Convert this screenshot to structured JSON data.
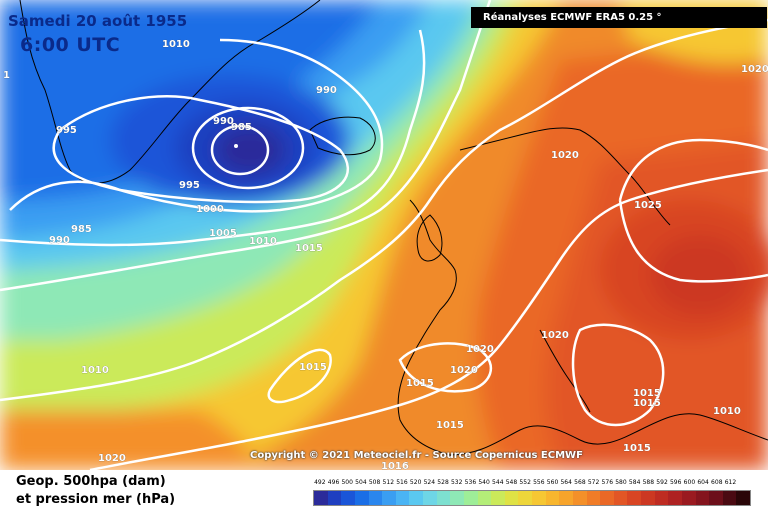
{
  "map": {
    "title_date": "Samedi 20 août 1955",
    "title_time": "6:00 UTC",
    "source": "Réanalyses ECMWF ERA5 0.25 °",
    "copyright": "Copyright © 2021 Meteociel.fr - Source Copernicus ECMWF",
    "isobar_labels": [
      "1010",
      "990",
      "995",
      "990",
      "985",
      "995",
      "1000",
      "990",
      "985",
      "1005",
      "1010",
      "1015",
      "1020",
      "1020",
      "1025",
      "1020",
      "1020",
      "1015",
      "1020",
      "1015",
      "1010",
      "1015",
      "1015",
      "1015",
      "1010",
      "1020",
      "1016",
      "1015",
      "1"
    ],
    "features": [
      "low-pressure-center-iceland",
      "high-pressure-europe",
      "coastline-greenland",
      "coastline-europe"
    ]
  },
  "legend": {
    "line1": "Geop. 500hpa (dam)",
    "line2": "et pression mer (hPa)",
    "scale": [
      {
        "v": "492",
        "c": "#2b2b9a"
      },
      {
        "v": "496",
        "c": "#1f3fc0"
      },
      {
        "v": "500",
        "c": "#1a55d8"
      },
      {
        "v": "504",
        "c": "#1a6ee6"
      },
      {
        "v": "508",
        "c": "#2a86ee"
      },
      {
        "v": "512",
        "c": "#3a9ef2"
      },
      {
        "v": "516",
        "c": "#4ab4f4"
      },
      {
        "v": "520",
        "c": "#5ac8f0"
      },
      {
        "v": "524",
        "c": "#6ed6e6"
      },
      {
        "v": "528",
        "c": "#7de0d0"
      },
      {
        "v": "532",
        "c": "#8ee8b6"
      },
      {
        "v": "536",
        "c": "#9eee98"
      },
      {
        "v": "540",
        "c": "#b4ee78"
      },
      {
        "v": "544",
        "c": "#cbea5a"
      },
      {
        "v": "548",
        "c": "#dfe245"
      },
      {
        "v": "552",
        "c": "#eed63a"
      },
      {
        "v": "556",
        "c": "#f6c733"
      },
      {
        "v": "560",
        "c": "#f8b62e"
      },
      {
        "v": "564",
        "c": "#f7a42b"
      },
      {
        "v": "568",
        "c": "#f49029"
      },
      {
        "v": "572",
        "c": "#f07c27"
      },
      {
        "v": "576",
        "c": "#ea6826"
      },
      {
        "v": "580",
        "c": "#e25625"
      },
      {
        "v": "584",
        "c": "#d84523"
      },
      {
        "v": "588",
        "c": "#cc3822"
      },
      {
        "v": "592",
        "c": "#be2c22"
      },
      {
        "v": "596",
        "c": "#ae2222"
      },
      {
        "v": "600",
        "c": "#9a1a20"
      },
      {
        "v": "604",
        "c": "#84141d"
      },
      {
        "v": "608",
        "c": "#6c0f1a"
      },
      {
        "v": "612",
        "c": "#4a0a12"
      },
      {
        "v": "",
        "c": "#2a0608"
      }
    ]
  },
  "colors": {
    "title": "#0a2a8a",
    "isobar": "#ffffff",
    "coastline": "#000000"
  }
}
